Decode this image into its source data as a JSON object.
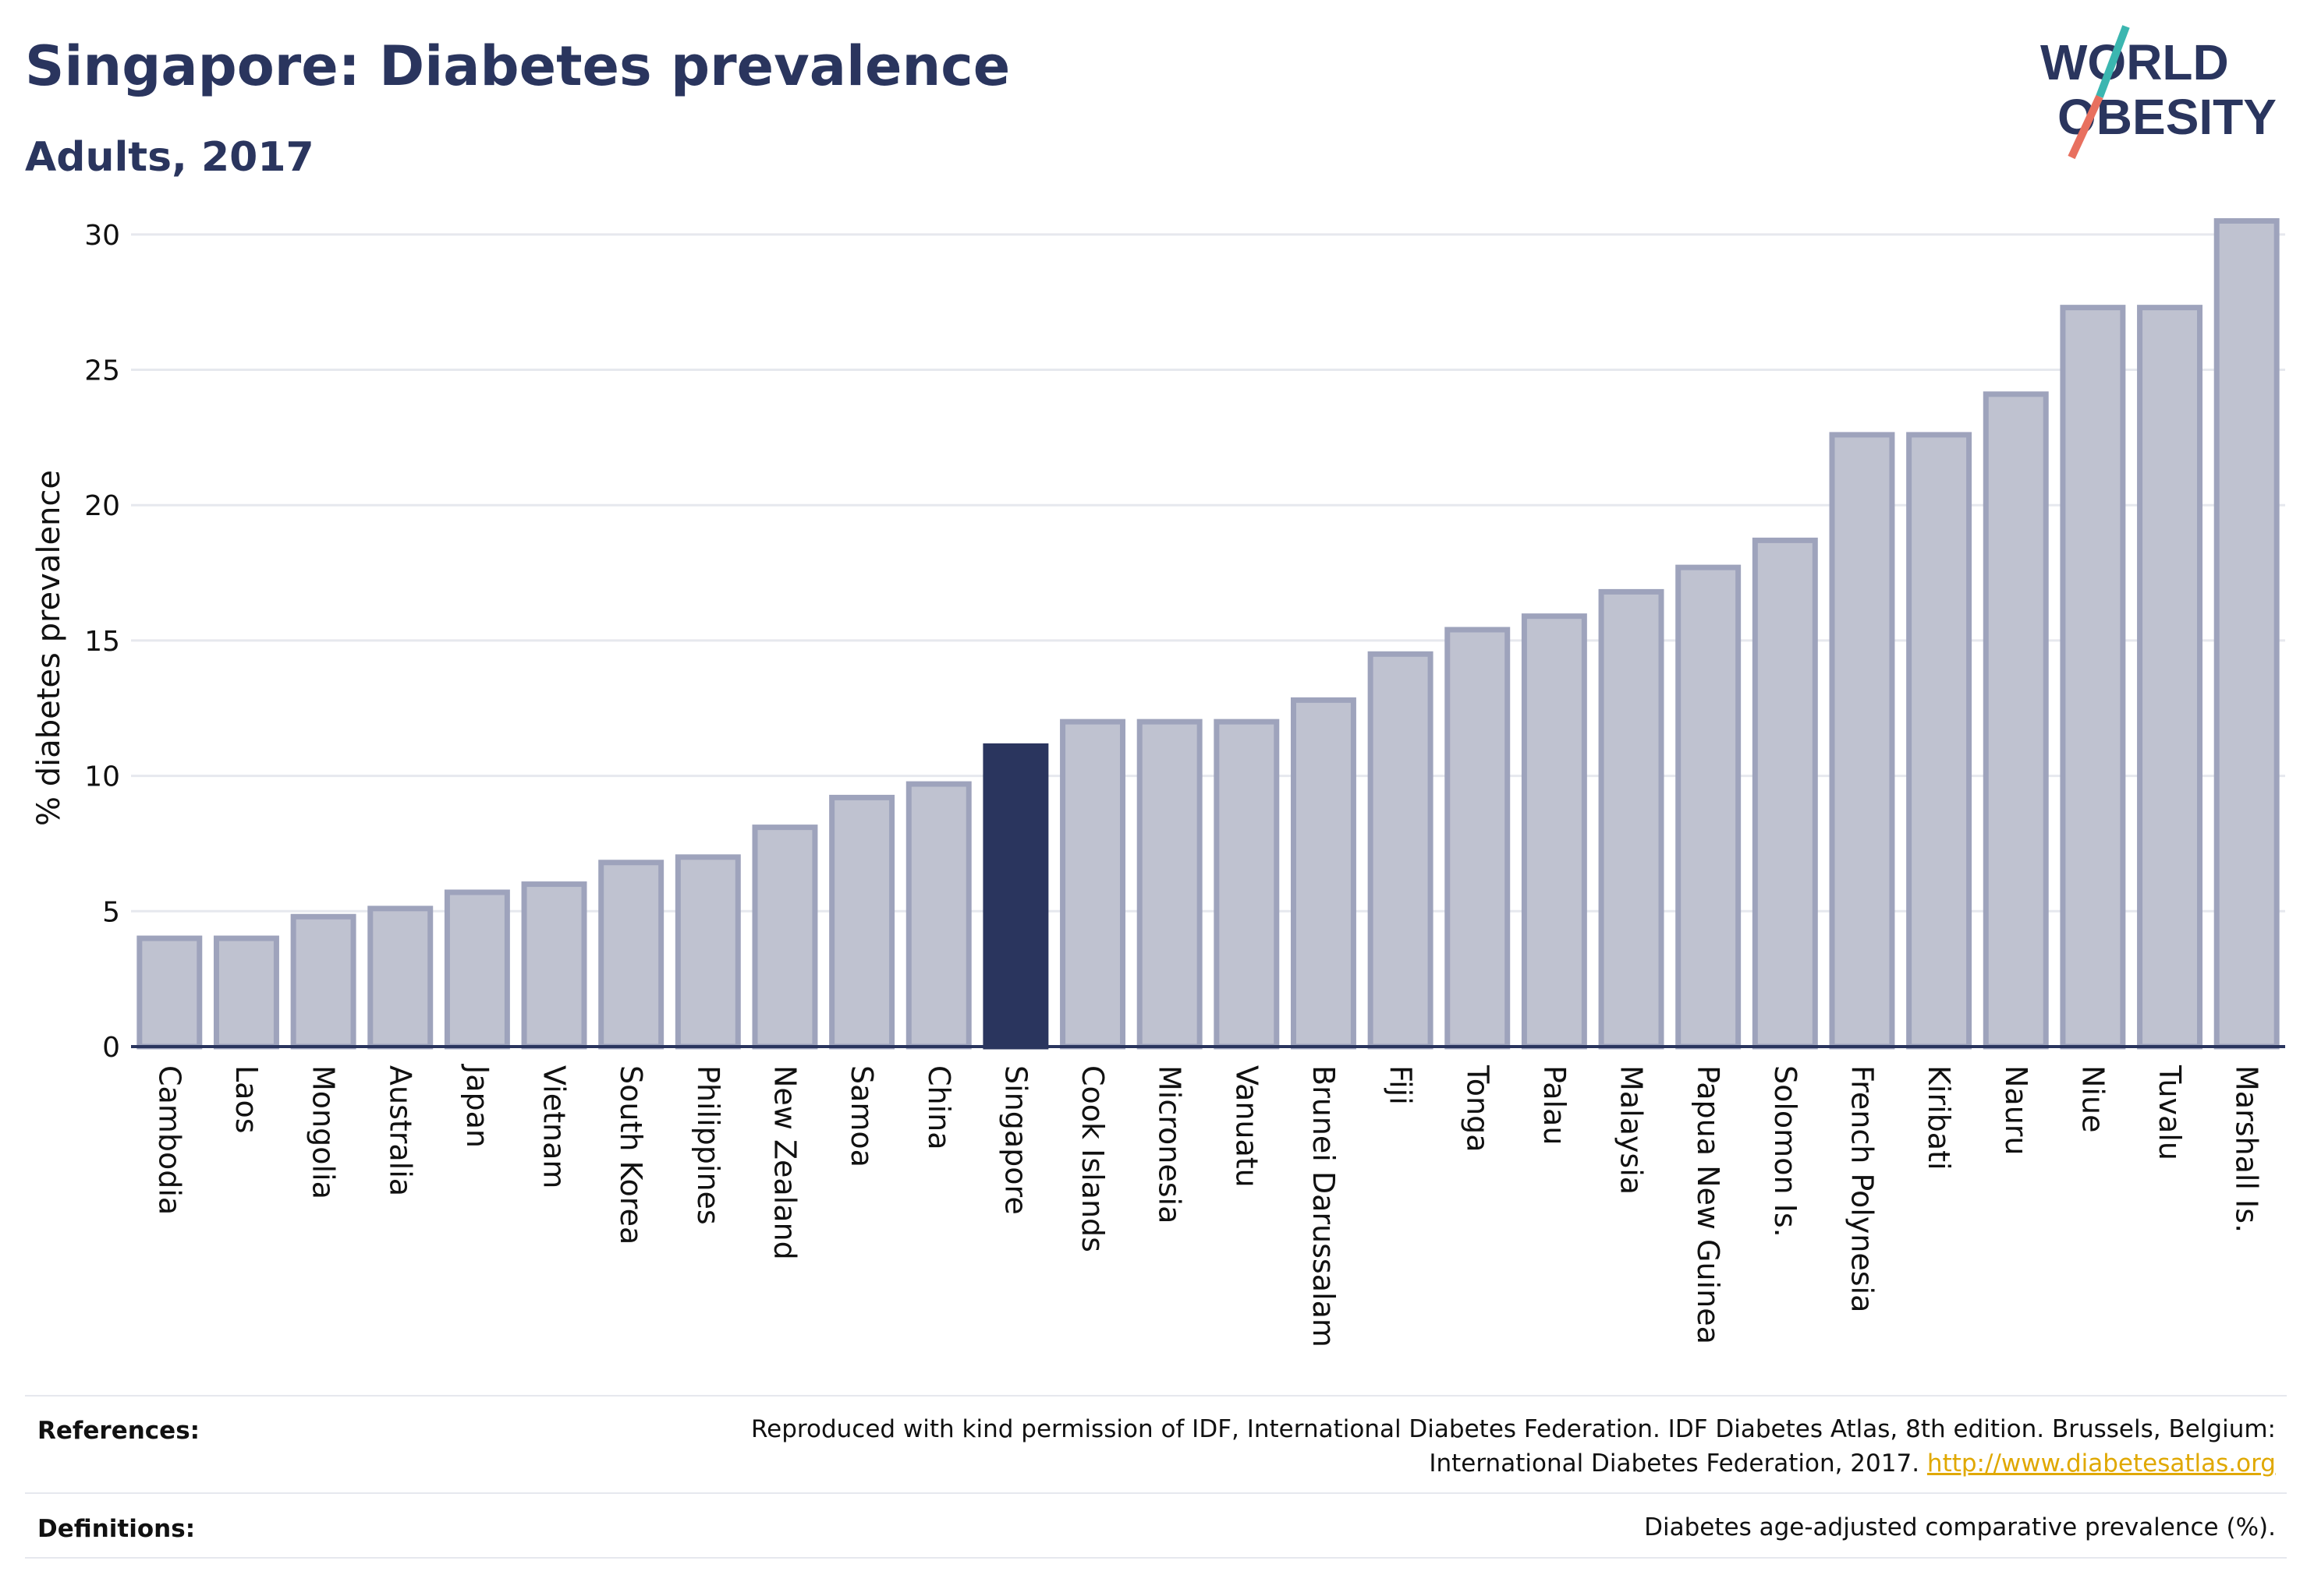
{
  "header": {
    "title": "Singapore: Diabetes prevalence",
    "subtitle": "Adults, 2017"
  },
  "logo": {
    "line1": "WORLD",
    "line2": "OBESITY",
    "accent_teal": "#3bb6b0",
    "accent_coral": "#e8705f"
  },
  "colors": {
    "bar_default": "#bfc2d0",
    "bar_default_border": "#9ea3bc",
    "bar_highlight": "#2a355e",
    "text_dark": "#2a355e",
    "link": "#e0a800"
  },
  "chart_data": {
    "type": "bar",
    "title": "Singapore: Diabetes prevalence",
    "subtitle": "Adults, 2017",
    "xlabel": "",
    "ylabel": "% diabetes prevalence",
    "ylim": [
      0,
      30
    ],
    "yticks": [
      0,
      5,
      10,
      15,
      20,
      25,
      30
    ],
    "grid": true,
    "highlight": "Singapore",
    "categories": [
      "Cambodia",
      "Laos",
      "Mongolia",
      "Australia",
      "Japan",
      "Vietnam",
      "South Korea",
      "Philippines",
      "New Zealand",
      "Samoa",
      "China",
      "Singapore",
      "Cook Islands",
      "Micronesia",
      "Vanuatu",
      "Brunei Darussalam",
      "Fiji",
      "Tonga",
      "Palau",
      "Malaysia",
      "Papua New Guinea",
      "Solomon Is.",
      "French Polynesia",
      "Kiribati",
      "Nauru",
      "Niue",
      "Tuvalu",
      "Marshall Is."
    ],
    "values": [
      4.0,
      4.0,
      4.8,
      5.1,
      5.7,
      6.0,
      6.8,
      7.0,
      8.1,
      9.2,
      9.7,
      11.1,
      12.0,
      12.0,
      12.0,
      12.8,
      14.5,
      15.4,
      15.9,
      16.8,
      17.7,
      18.7,
      22.6,
      22.6,
      24.1,
      27.3,
      27.3,
      30.5
    ]
  },
  "footer": {
    "references_label": "References:",
    "references_line1": "Reproduced with kind permission of IDF, International Diabetes Federation. IDF Diabetes Atlas, 8th edition. Brussels, Belgium:",
    "references_line2": "International Diabetes Federation, 2017.",
    "references_link": "http://www.diabetesatlas.org",
    "definitions_label": "Definitions:",
    "definitions_text": "Diabetes age-adjusted comparative prevalence (%)."
  }
}
